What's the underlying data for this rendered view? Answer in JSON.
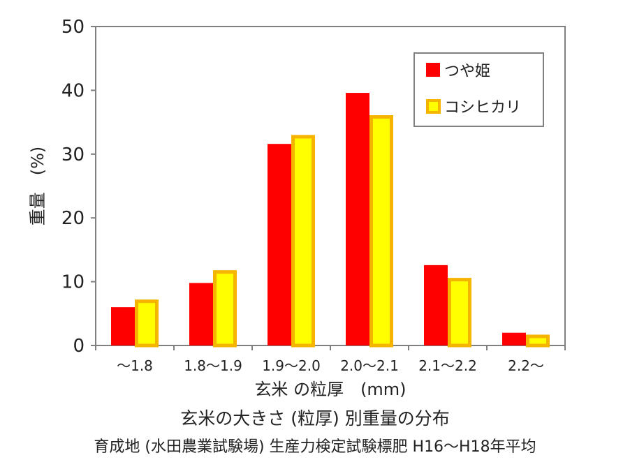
{
  "chart_data": {
    "type": "bar",
    "categories": [
      "～1.8",
      "1.8～1.9",
      "1.9～2.0",
      "2.0～2.1",
      "2.1～2.2",
      "2.2～"
    ],
    "series": [
      {
        "name": "つや姫",
        "values": [
          6,
          9.8,
          31.6,
          39.6,
          12.6,
          2
        ]
      },
      {
        "name": "コシヒカリ",
        "values": [
          7.2,
          11.8,
          33,
          36.1,
          10.6,
          1.7
        ]
      }
    ],
    "colors": {
      "つや姫": "#ff0000",
      "コシヒカリ": "#ffff00",
      "コシヒカリ_border": "#f5b400"
    },
    "xlabel": "玄米 の粒厚　(mm)",
    "ylabel": "重量　(%)",
    "ylim": [
      0,
      50
    ],
    "yticks": [
      0,
      10,
      20,
      30,
      40,
      50
    ],
    "legend_position": "top-right",
    "grid": false
  },
  "caption": {
    "title": "玄米の大きさ (粒厚) 別重量の分布",
    "subtitle": "育成地 (水田農業試験場) 生産力検定試験標肥 H16～H18年平均"
  }
}
